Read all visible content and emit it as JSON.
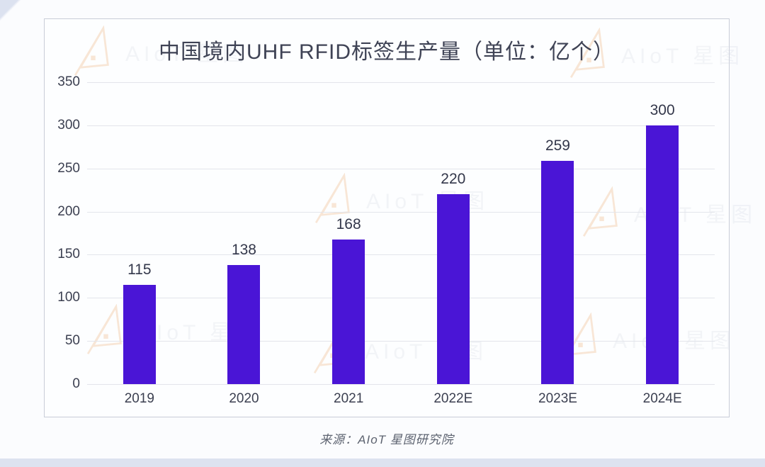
{
  "chart_data": {
    "type": "bar",
    "title": "中国境内UHF RFID标签生产量（单位：亿个）",
    "categories": [
      "2019",
      "2020",
      "2021",
      "2022E",
      "2023E",
      "2024E"
    ],
    "values": [
      115,
      138,
      168,
      220,
      259,
      300
    ],
    "ylim": [
      0,
      350
    ],
    "yticks": [
      0,
      50,
      100,
      150,
      200,
      250,
      300,
      350
    ],
    "grid": true,
    "legend_position": "none",
    "bar_color": "#4a15d6",
    "xlabel": "",
    "ylabel": ""
  },
  "source": {
    "text": "来源：AIoT 星图研究院"
  },
  "watermark": {
    "text": "AIoT 星图",
    "logo_color": "#e9a66b"
  },
  "colors": {
    "grid": "#e3e5eb",
    "text_dark": "#3a3e50",
    "title_text": "#3f4355",
    "source_text": "#5d6370",
    "card_border": "#c9cdd8",
    "bottom_strip": "#dde2f0"
  }
}
